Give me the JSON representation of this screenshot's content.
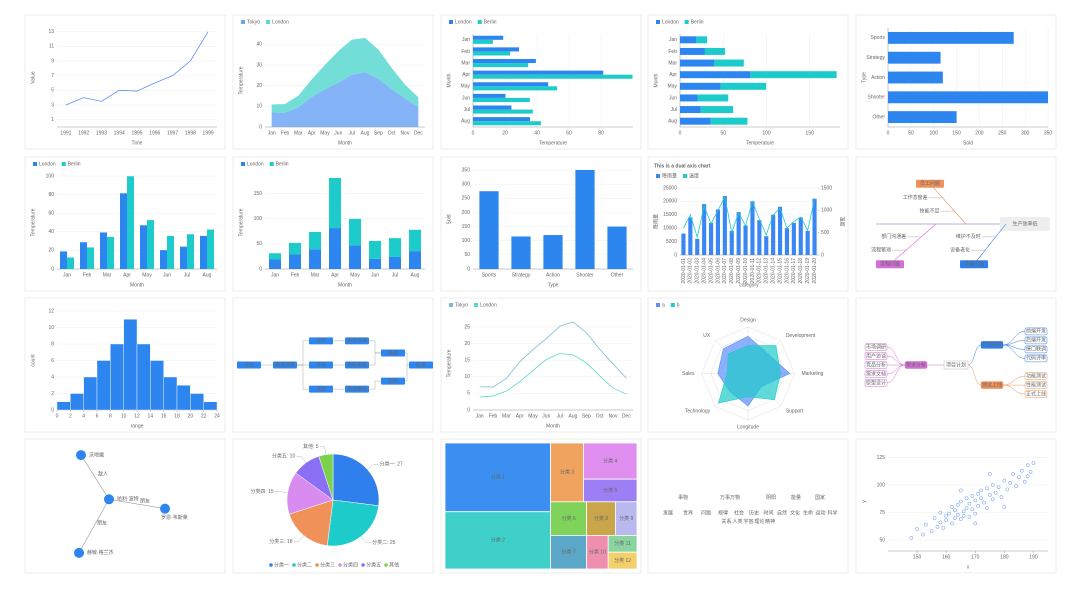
{
  "chart_data": [
    {
      "type": "line",
      "x_label": "Time",
      "y_label": "Value",
      "categories": [
        "1991",
        "1992",
        "1993",
        "1994",
        "1995",
        "1996",
        "1997",
        "1998",
        "1999"
      ],
      "values": [
        3,
        4,
        3.5,
        5,
        4.9,
        6,
        7,
        9,
        13
      ],
      "color": "#5b8ff9",
      "ylim": [
        0,
        13.5
      ],
      "yticks": [
        1,
        3,
        5,
        7,
        9,
        11,
        13
      ]
    },
    {
      "type": "area",
      "x_label": "Month",
      "y_label": "Temperature",
      "categories": [
        "Jan",
        "Feb",
        "Mar",
        "Apr",
        "May",
        "Jun",
        "Jul",
        "Aug",
        "Sep",
        "Oct",
        "Nov",
        "Dec"
      ],
      "series": [
        {
          "name": "Tokyo",
          "color": "#6ea6f7",
          "values": [
            7,
            6.9,
            9.5,
            14.5,
            18.2,
            21.5,
            25.2,
            26.5,
            23.3,
            18.3,
            13.9,
            9.6
          ]
        },
        {
          "name": "London",
          "color": "#5ad8d0",
          "values": [
            3.9,
            4.2,
            5.7,
            8.5,
            11.9,
            15.2,
            17,
            16.6,
            14.2,
            10.3,
            6.6,
            4.8
          ]
        }
      ],
      "ylim": [
        0,
        45
      ],
      "yticks": [
        0,
        10,
        20,
        30,
        40
      ]
    },
    {
      "type": "hbar",
      "x_label": "Temperature",
      "y_label": "Month",
      "categories": [
        "Jan",
        "Feb",
        "Mar",
        "Apr",
        "May",
        "Jun",
        "Jul",
        "Aug"
      ],
      "series": [
        {
          "name": "London",
          "color": "#2d85f0",
          "values": [
            18.9,
            28.8,
            39.3,
            81.4,
            47,
            20.3,
            24,
            35.6
          ]
        },
        {
          "name": "Berlin",
          "color": "#1ecbcb",
          "values": [
            12.4,
            23.2,
            34.5,
            99.7,
            52.6,
            35.5,
            37.4,
            42.4
          ]
        }
      ],
      "xlim": [
        0,
        100
      ],
      "xticks": [
        0,
        20,
        40,
        60,
        80
      ]
    },
    {
      "type": "hbar",
      "stacked": true,
      "x_label": "Temperature",
      "y_label": "Month",
      "categories": [
        "Jan",
        "Feb",
        "Mar",
        "Apr",
        "May",
        "Jun",
        "Jul",
        "Aug"
      ],
      "series": [
        {
          "name": "London",
          "color": "#2d85f0",
          "values": [
            18.9,
            28.8,
            39.3,
            81.4,
            47,
            20.3,
            24,
            35.6
          ]
        },
        {
          "name": "Berlin",
          "color": "#1ecbcb",
          "values": [
            12.4,
            23.2,
            34.5,
            99.7,
            52.6,
            35.5,
            37.4,
            42.4
          ]
        }
      ],
      "xlim": [
        0,
        185
      ],
      "xticks": [
        0,
        50,
        100,
        150
      ]
    },
    {
      "type": "hbar",
      "x_label": "Sold",
      "y_label": "Type",
      "categories": [
        "Sports",
        "Strategy",
        "Action",
        "Shooter",
        "Other"
      ],
      "values": [
        275,
        115,
        120,
        350,
        150
      ],
      "color": "#2d85f0",
      "xlim": [
        0,
        350
      ],
      "xticks": [
        0,
        50,
        100,
        150,
        200,
        250,
        300,
        350
      ]
    },
    {
      "type": "bar",
      "x_label": "Month",
      "y_label": "Temperature",
      "categories": [
        "Jan",
        "Feb",
        "Mar",
        "Apr",
        "May",
        "Jun",
        "Jul",
        "Aug"
      ],
      "series": [
        {
          "name": "London",
          "color": "#2d85f0",
          "values": [
            18.9,
            28.8,
            39.3,
            81.4,
            47,
            20.3,
            24,
            35.6
          ]
        },
        {
          "name": "Berlin",
          "color": "#1ecbcb",
          "values": [
            12.4,
            23.2,
            34.5,
            99.7,
            52.6,
            35.5,
            37.4,
            42.4
          ]
        }
      ],
      "ylim": [
        0,
        100
      ],
      "yticks": [
        0,
        20,
        40,
        60,
        80,
        100
      ]
    },
    {
      "type": "bar",
      "stacked": true,
      "x_label": "Month",
      "y_label": "Temperature",
      "categories": [
        "Jan",
        "Feb",
        "Mar",
        "Apr",
        "May",
        "Jun",
        "Jul",
        "Aug"
      ],
      "series": [
        {
          "name": "London",
          "color": "#2d85f0",
          "values": [
            18.9,
            28.8,
            39.3,
            81.4,
            47,
            20.3,
            24,
            35.6
          ]
        },
        {
          "name": "Berlin",
          "color": "#1ecbcb",
          "values": [
            12.4,
            23.2,
            34.5,
            99.7,
            52.6,
            35.5,
            37.4,
            42.4
          ]
        }
      ],
      "ylim": [
        0,
        185
      ],
      "yticks": [
        0,
        50,
        100,
        150
      ]
    },
    {
      "type": "bar",
      "x_label": "Type",
      "y_label": "Sold",
      "categories": [
        "Sports",
        "Strategy",
        "Action",
        "Shooter",
        "Other"
      ],
      "values": [
        275,
        115,
        120,
        350,
        150
      ],
      "color": "#2d85f0",
      "ylim": [
        0,
        350
      ],
      "yticks": [
        0,
        50,
        100,
        150,
        200,
        250,
        300,
        350
      ]
    },
    {
      "type": "dual",
      "title": "This is a dual axis chart",
      "x_label": "category",
      "y_label": "降雨量",
      "y2_label": "温度",
      "categories": [
        "2020-01-01",
        "2020-01-02",
        "2020-01-03",
        "2020-01-04",
        "2020-01-05",
        "2020-01-06",
        "2020-01-07",
        "2020-01-08",
        "2020-01-09",
        "2020-01-10",
        "2020-01-11",
        "2020-01-12",
        "2020-01-13",
        "2020-01-14",
        "2020-01-15",
        "2020-01-16",
        "2020-01-17",
        "2020-01-18",
        "2020-01-19",
        "2020-01-20"
      ],
      "series": [
        {
          "name": "降雨量",
          "color": "#3a86f5",
          "axis": "y",
          "values": [
            8000,
            14000,
            6000,
            19000,
            12000,
            17000,
            22000,
            9000,
            16000,
            11000,
            20000,
            13000,
            7000,
            15000,
            18000,
            10000,
            12000,
            14000,
            9000,
            21000
          ]
        },
        {
          "name": "温度",
          "color": "#1ecbcb",
          "axis": "y2",
          "values": [
            600,
            900,
            400,
            1100,
            700,
            1000,
            1300,
            500,
            950,
            650,
            1200,
            800,
            450,
            900,
            1050,
            600,
            750,
            850,
            550,
            1250
          ]
        }
      ],
      "ylim": [
        0,
        25000
      ],
      "yticks": [
        0,
        5000,
        10000,
        15000,
        20000,
        25000
      ],
      "y2lim": [
        0,
        1500
      ],
      "y2ticks": [
        0,
        500,
        1000,
        1500
      ]
    },
    {
      "type": "fishbone",
      "head": "生产效率低",
      "branches": [
        {
          "label": "员工问题",
          "causes": [
            "工作态度差",
            "技能不足"
          ]
        },
        {
          "label": "流程问题",
          "causes": [
            "流程繁琐",
            "部门沟通差"
          ]
        },
        {
          "label": "设备问题",
          "causes": [
            "设备老化",
            "维护不及时"
          ]
        }
      ],
      "colors": [
        "#f0915a",
        "#d36fd6",
        "#2f80ed"
      ]
    },
    {
      "type": "histogram",
      "x_label": "range",
      "y_label": "count",
      "bins": [
        0,
        2,
        4,
        6,
        8,
        10,
        12,
        14,
        16,
        18,
        20,
        22,
        24
      ],
      "values": [
        1,
        2,
        4,
        6,
        8,
        11,
        8,
        6,
        4,
        3,
        2,
        1
      ],
      "color": "#2d85f0",
      "xlim": [
        0,
        24
      ],
      "xticks": [
        0,
        2,
        4,
        6,
        8,
        10,
        12,
        14,
        16,
        18,
        20,
        22,
        24
      ],
      "ylim": [
        0,
        12
      ],
      "yticks": [
        0,
        2,
        4,
        6,
        8,
        10,
        12
      ]
    },
    {
      "type": "flowchart",
      "nodes": [
        "开始",
        "需求评审",
        "设计",
        "开发",
        "测试",
        "设计评审",
        "代码审核",
        "测试报告",
        "集成",
        "验收",
        "结束"
      ],
      "edges": [
        [
          0,
          1
        ],
        [
          1,
          2
        ],
        [
          1,
          3
        ],
        [
          1,
          4
        ],
        [
          2,
          5
        ],
        [
          3,
          6
        ],
        [
          4,
          7
        ],
        [
          5,
          8
        ],
        [
          6,
          8
        ],
        [
          7,
          9
        ],
        [
          8,
          10
        ],
        [
          9,
          10
        ]
      ],
      "color": "#2d85f0"
    },
    {
      "type": "line",
      "x_label": "Month",
      "y_label": "Temperature",
      "categories": [
        "Jan",
        "Feb",
        "Mar",
        "Apr",
        "May",
        "Jun",
        "Jul",
        "Aug",
        "Sep",
        "Oct",
        "Nov",
        "Dec"
      ],
      "series": [
        {
          "name": "Tokyo",
          "color": "#7fb8d6",
          "values": [
            7,
            6.9,
            9.5,
            14.5,
            18.2,
            21.5,
            25.2,
            26.5,
            23.3,
            18.3,
            13.9,
            9.6
          ]
        },
        {
          "name": "London",
          "color": "#5ad8d0",
          "values": [
            3.9,
            4.2,
            5.7,
            8.5,
            11.9,
            15.2,
            17,
            16.6,
            14.2,
            10.3,
            6.6,
            4.8
          ]
        }
      ],
      "ylim": [
        0,
        28
      ],
      "yticks": [
        0,
        5,
        10,
        15,
        20,
        25
      ]
    },
    {
      "type": "radar",
      "indicators": [
        {
          "name": "Design",
          "max": 100
        },
        {
          "name": "Development",
          "max": 100
        },
        {
          "name": "Marketing",
          "max": 100
        },
        {
          "name": "Support",
          "max": 100
        },
        {
          "name": "Longitude",
          "max": 100
        },
        {
          "name": "Technology",
          "max": 100
        },
        {
          "name": "Sales",
          "max": 100
        },
        {
          "name": "UX",
          "max": 100
        }
      ],
      "series": [
        {
          "name": "a",
          "color": "#5b8ff9",
          "values": [
            80,
            60,
            90,
            40,
            70,
            55,
            65,
            75
          ]
        },
        {
          "name": "b",
          "color": "#1ecbcb",
          "values": [
            60,
            85,
            70,
            80,
            50,
            90,
            45,
            60
          ]
        }
      ]
    },
    {
      "type": "mindmap",
      "root": "项目计划",
      "branches": [
        {
          "label": "需求分析",
          "children": [
            "市场调研",
            "用户访谈",
            "竞品分析",
            "需求文档",
            "原型设计"
          ]
        },
        {
          "label": "开发实施",
          "children": [
            "前端开发",
            "后端开发",
            "接口联调",
            "代码评审"
          ]
        },
        {
          "label": "测试上线",
          "children": [
            "功能测试",
            "性能测试",
            "正式上线"
          ]
        }
      ],
      "colors": [
        "#d36fd6",
        "#2f80ed",
        "#f0915a"
      ]
    },
    {
      "type": "graph",
      "nodes": [
        "沃地魔",
        "哈利·波特",
        "罗恩·韦斯莱",
        "赫敏·格兰杰"
      ],
      "edges": [
        {
          "source": 0,
          "target": 1,
          "label": "敌人"
        },
        {
          "source": 1,
          "target": 2,
          "label": "朋友"
        },
        {
          "source": 1,
          "target": 3,
          "label": "朋友"
        }
      ],
      "color": "#2d85f0"
    },
    {
      "type": "pie",
      "categories": [
        "分类一",
        "分类二",
        "分类三",
        "分类四",
        "分类五",
        "其他"
      ],
      "values": [
        27,
        25,
        18,
        15,
        10,
        5
      ],
      "value_labels": [
        "分类一: 27",
        "分类二: 25",
        "分类三: 18",
        "分类四: 15",
        "分类五: 10",
        "其他: 5"
      ],
      "colors": [
        "#2f80ed",
        "#1ecbcb",
        "#f0915a",
        "#d98cf0",
        "#8b6ff5",
        "#7bd14a"
      ]
    },
    {
      "type": "treemap",
      "categories": [
        "分类 1",
        "分类 2",
        "分类 3",
        "分类 4",
        "分类 5",
        "分类 6",
        "分类 7",
        "分类 8",
        "分类 9",
        "分类 10",
        "分类 11",
        "分类 12"
      ],
      "values": [
        30,
        25,
        8,
        8,
        5,
        5,
        5,
        4,
        3,
        3,
        2,
        2
      ],
      "colors": [
        "#3a8ff0",
        "#3fd1c9",
        "#f0a35e",
        "#e08ef0",
        "#9c7ef5",
        "#7fd35a",
        "#5aa7c8",
        "#c9a64a",
        "#b9b9f0",
        "#ef8fb0",
        "#8ad4a0",
        "#f3d06b"
      ]
    },
    {
      "type": "wordcloud",
      "words": [
        "事物",
        "万事万物",
        "阴阳",
        "能量",
        "国家",
        "发展",
        "世界",
        "问题",
        "规律",
        "社会",
        "历史",
        "时间",
        "自然",
        "文化",
        "生命",
        "运动",
        "科学",
        "关系",
        "人类",
        "宇宙",
        "理论",
        "精神"
      ],
      "values": [
        36,
        26,
        24,
        20,
        22,
        18,
        16,
        14,
        14,
        12,
        12,
        11,
        10,
        10,
        10,
        9,
        9,
        8,
        8,
        8,
        8,
        7
      ],
      "colors": [
        "#2f80ed",
        "#1ecbcb",
        "#f0915a",
        "#d98cf0",
        "#8b6ff5",
        "#7bd14a",
        "#e0b84a"
      ]
    },
    {
      "type": "scatter",
      "x_label": "x",
      "y_label": "y",
      "color": "#5b8ff9",
      "x": [
        148,
        150,
        152,
        153,
        155,
        156,
        157,
        158,
        158,
        159,
        160,
        160,
        161,
        162,
        162,
        163,
        163,
        164,
        164,
        165,
        165,
        166,
        166,
        167,
        167,
        168,
        168,
        169,
        169,
        170,
        170,
        171,
        171,
        172,
        172,
        173,
        174,
        174,
        175,
        176,
        176,
        177,
        178,
        179,
        180,
        181,
        182,
        183,
        184,
        185,
        186,
        187,
        188,
        188,
        189,
        190,
        165,
        170,
        175,
        180
      ],
      "y": [
        52,
        60,
        55,
        64,
        58,
        70,
        62,
        66,
        75,
        61,
        72,
        68,
        74,
        65,
        80,
        70,
        77,
        73,
        82,
        69,
        85,
        76,
        72,
        88,
        79,
        83,
        71,
        90,
        78,
        86,
        74,
        92,
        81,
        88,
        95,
        84,
        97,
        79,
        91,
        100,
        87,
        93,
        98,
        89,
        104,
        96,
        102,
        110,
        99,
        107,
        113,
        103,
        118,
        108,
        112,
        120,
        95,
        65,
        110,
        80
      ],
      "xlim": [
        140,
        195
      ],
      "xticks": [
        150,
        160,
        170,
        180,
        190
      ],
      "ylim": [
        40,
        130
      ],
      "yticks": [
        50,
        75,
        100,
        125
      ]
    }
  ]
}
